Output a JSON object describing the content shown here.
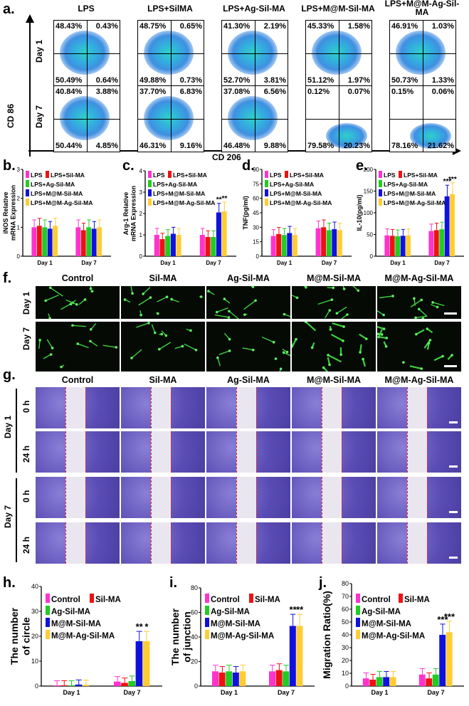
{
  "panel_a": {
    "letter": "a.",
    "y_axis_label": "CD 86",
    "x_axis_label": "CD 206",
    "row_labels": [
      "Day 1",
      "Day 7"
    ],
    "columns": [
      "LPS",
      "LPS+SilMA",
      "LPS+Ag-Sil-MA",
      "LPS+M@M-Sil-MA",
      "LPS+M@M-Ag-Sil-MA"
    ],
    "quadrants": [
      [
        [
          "48.43%",
          "0.43%",
          "50.49%",
          "0.64%"
        ],
        [
          "48.75%",
          "0.65%",
          "49.88%",
          "0.73%"
        ],
        [
          "41.30%",
          "2.19%",
          "52.70%",
          "3.81%"
        ],
        [
          "45.33%",
          "1.58%",
          "51.12%",
          "1.97%"
        ],
        [
          "46.91%",
          "1.03%",
          "50.73%",
          "1.33%"
        ]
      ],
      [
        [
          "40.84%",
          "3.88%",
          "50.44%",
          "4.85%"
        ],
        [
          "37.70%",
          "6.83%",
          "46.31%",
          "9.16%"
        ],
        [
          "37.08%",
          "6.56%",
          "46.48%",
          "9.88%"
        ],
        [
          "0.12%",
          "0.07%",
          "79.58%",
          "20.23%"
        ],
        [
          "0.15%",
          "0.06%",
          "78.16%",
          "21.62%"
        ]
      ]
    ]
  },
  "panel_b": {
    "letter": "b.",
    "ylabel": "iNOS Relative mRNA Expression"
  },
  "panel_c": {
    "letter": "c.",
    "ylabel": "Arg-1 Relative mRNA Expression"
  },
  "panel_d": {
    "letter": "d.",
    "ylabel": "TNF(pg/ml)"
  },
  "panel_e": {
    "letter": "e.",
    "ylabel": "IL-10(pg/ml)"
  },
  "panel_f": {
    "letter": "f.",
    "columns": [
      "Control",
      "Sil-MA",
      "Ag-Sil-MA",
      "M@M-Sil-MA",
      "M@M-Ag-Sil-MA"
    ],
    "rows": [
      "Day 1",
      "Day 7"
    ]
  },
  "panel_g": {
    "letter": "g.",
    "columns": [
      "Control",
      "Sil-MA",
      "Ag-Sil-MA",
      "M@M-Sil-MA",
      "M@M-Ag-Sil-MA"
    ],
    "days": [
      "Day 1",
      "Day 7"
    ],
    "times": [
      "0 h",
      "24 h"
    ]
  },
  "panel_h": {
    "letter": "h.",
    "ylabel": "The number of circle"
  },
  "panel_i": {
    "letter": "i.",
    "ylabel": "The number of junction"
  },
  "panel_j": {
    "letter": "j.",
    "ylabel": "Migration Ratio(%)"
  },
  "chart_data": [
    {
      "id": "b",
      "type": "bar",
      "categories": [
        "Day 1",
        "Day 7"
      ],
      "ylim": [
        0,
        3
      ],
      "yticks": [
        0,
        1,
        2,
        3
      ],
      "series": [
        {
          "name": "LPS",
          "color": "#ff33cc",
          "values": [
            1.0,
            1.0
          ]
        },
        {
          "name": "LPS+Sil-MA",
          "color": "#ee1111",
          "values": [
            1.05,
            0.9
          ]
        },
        {
          "name": "LPS+Ag-Sil-MA",
          "color": "#22cc22",
          "values": [
            1.0,
            1.0
          ]
        },
        {
          "name": "LPS+M@M-Sil-MA",
          "color": "#1111dd",
          "values": [
            0.95,
            0.95
          ]
        },
        {
          "name": "LPS+M@M-Ag-Sil-MA",
          "color": "#ffcc33",
          "values": [
            1.05,
            1.0
          ]
        }
      ],
      "annotations": []
    },
    {
      "id": "c",
      "type": "bar",
      "categories": [
        "Day 1",
        "Day 7"
      ],
      "ylim": [
        0,
        4
      ],
      "yticks": [
        0,
        1,
        2,
        3,
        4
      ],
      "series": [
        {
          "name": "LPS",
          "color": "#ff33cc",
          "values": [
            1.0,
            1.0
          ]
        },
        {
          "name": "LPS+Sil-MA",
          "color": "#ee1111",
          "values": [
            0.8,
            0.9
          ]
        },
        {
          "name": "LPS+Ag-Sil-MA",
          "color": "#22cc22",
          "values": [
            0.95,
            0.9
          ]
        },
        {
          "name": "LPS+M@M-Sil-MA",
          "color": "#1111dd",
          "values": [
            1.05,
            2.05
          ]
        },
        {
          "name": "LPS+M@M-Ag-Sil-MA",
          "color": "#ffcc33",
          "values": [
            1.0,
            2.1
          ]
        }
      ],
      "annotations": [
        "**",
        "**"
      ]
    },
    {
      "id": "d",
      "type": "bar",
      "categories": [
        "Day 1",
        "Day 7"
      ],
      "ylim": [
        0,
        90
      ],
      "yticks": [
        0,
        15,
        30,
        45,
        60,
        75,
        90
      ],
      "series": [
        {
          "name": "LPS",
          "color": "#ff33cc",
          "values": [
            21,
            29
          ]
        },
        {
          "name": "LPS+Sil-MA",
          "color": "#ee1111",
          "values": [
            23,
            30
          ]
        },
        {
          "name": "LPS+Ag-Sil-MA",
          "color": "#22cc22",
          "values": [
            22,
            27
          ]
        },
        {
          "name": "LPS+M@M-Sil-MA",
          "color": "#1111dd",
          "values": [
            24,
            28
          ]
        },
        {
          "name": "LPS+M@M-Ag-Sil-MA",
          "color": "#ffcc33",
          "values": [
            22,
            27
          ]
        }
      ],
      "annotations": []
    },
    {
      "id": "e",
      "type": "bar",
      "categories": [
        "Day 1",
        "Day 7"
      ],
      "ylim": [
        0,
        200
      ],
      "yticks": [
        0,
        50,
        100,
        150,
        200
      ],
      "series": [
        {
          "name": "LPS",
          "color": "#ff33cc",
          "values": [
            48,
            58
          ]
        },
        {
          "name": "LPS+Sil-MA",
          "color": "#ee1111",
          "values": [
            47,
            60
          ]
        },
        {
          "name": "LPS+Ag-Sil-MA",
          "color": "#22cc22",
          "values": [
            46,
            62
          ]
        },
        {
          "name": "LPS+M@M-Sil-MA",
          "color": "#1111dd",
          "values": [
            47,
            138
          ]
        },
        {
          "name": "LPS+M@M-Ag-Sil-MA",
          "color": "#ffcc33",
          "values": [
            48,
            143
          ]
        }
      ],
      "annotations": [
        "***",
        "***"
      ]
    },
    {
      "id": "h",
      "type": "bar",
      "categories": [
        "Day 1",
        "Day 7"
      ],
      "ylim": [
        0,
        40
      ],
      "yticks": [
        0,
        10,
        20,
        30,
        40
      ],
      "series": [
        {
          "name": "Control",
          "color": "#ff33cc",
          "values": [
            0.3,
            1.8
          ]
        },
        {
          "name": "Sil-MA",
          "color": "#ee1111",
          "values": [
            0.3,
            1.3
          ]
        },
        {
          "name": "Ag-Sil-MA",
          "color": "#22cc22",
          "values": [
            0.3,
            2.0
          ]
        },
        {
          "name": "M@M-Sil-MA",
          "color": "#1111dd",
          "values": [
            0.6,
            18
          ]
        },
        {
          "name": "M@M-Ag-Sil-MA",
          "color": "#ffcc33",
          "values": [
            0.5,
            18
          ]
        }
      ],
      "annotations": [
        "**",
        "*"
      ]
    },
    {
      "id": "i",
      "type": "bar",
      "categories": [
        "Day 1",
        "Day 7"
      ],
      "ylim": [
        0,
        80
      ],
      "yticks": [
        0,
        20,
        40,
        60,
        80
      ],
      "series": [
        {
          "name": "Control",
          "color": "#ff33cc",
          "values": [
            12,
            12
          ]
        },
        {
          "name": "Sil-MA",
          "color": "#ee1111",
          "values": [
            11,
            13
          ]
        },
        {
          "name": "Ag-Sil-MA",
          "color": "#22cc22",
          "values": [
            12,
            12
          ]
        },
        {
          "name": "M@M-Sil-MA",
          "color": "#1111dd",
          "values": [
            11,
            49
          ]
        },
        {
          "name": "M@M-Ag-Sil-MA",
          "color": "#ffcc33",
          "values": [
            12,
            49
          ]
        }
      ],
      "annotations": [
        "**",
        "**"
      ]
    },
    {
      "id": "j",
      "type": "bar",
      "categories": [
        "Day 1",
        "Day 7"
      ],
      "ylim": [
        0,
        80
      ],
      "yticks": [
        0,
        10,
        20,
        30,
        40,
        50,
        60,
        70,
        80
      ],
      "series": [
        {
          "name": "Control",
          "color": "#ff33cc",
          "values": [
            6,
            9
          ]
        },
        {
          "name": "Sil-MA",
          "color": "#ee1111",
          "values": [
            5,
            6
          ]
        },
        {
          "name": "Ag-Sil-MA",
          "color": "#22cc22",
          "values": [
            7,
            9
          ]
        },
        {
          "name": "M@M-Sil-MA",
          "color": "#1111dd",
          "values": [
            7,
            40
          ]
        },
        {
          "name": "M@M-Ag-Sil-MA",
          "color": "#ffcc33",
          "values": [
            7,
            42
          ]
        }
      ],
      "annotations": [
        "***",
        "***"
      ]
    }
  ]
}
